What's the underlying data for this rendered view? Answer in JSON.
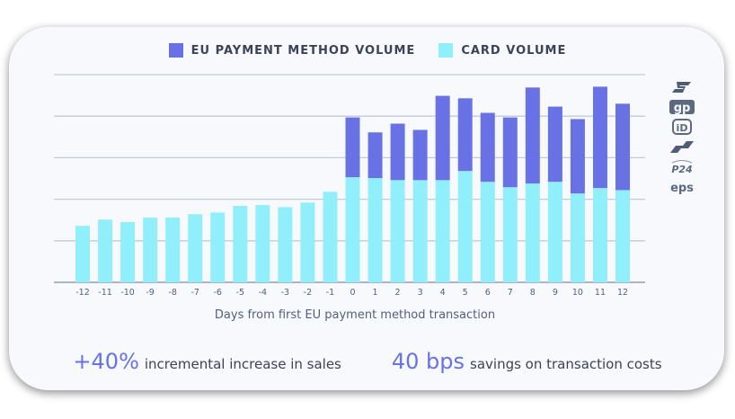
{
  "chart_data": {
    "type": "bar",
    "stacked": true,
    "xlabel": "Days from first EU payment method transaction",
    "ylabel": "",
    "ylim": [
      0,
      50
    ],
    "grid": true,
    "legend_placement": "top",
    "categories": [
      "-12",
      "-11",
      "-10",
      "-9",
      "-8",
      "-7",
      "-6",
      "-5",
      "-4",
      "-3",
      "-2",
      "-1",
      "0",
      "1",
      "2",
      "3",
      "4",
      "5",
      "6",
      "7",
      "8",
      "9",
      "10",
      "11",
      "12"
    ],
    "series": [
      {
        "name": "CARD VOLUME",
        "color": "#91eefb",
        "values": [
          13.6,
          15.1,
          14.5,
          15.6,
          15.6,
          16.4,
          16.8,
          18.4,
          18.6,
          18.1,
          19.2,
          21.8,
          25.3,
          25.1,
          24.6,
          24.6,
          24.6,
          26.8,
          24.2,
          22.9,
          23.8,
          24.2,
          21.4,
          22.7,
          22.2
        ]
      },
      {
        "name": "EU PAYMENT METHOD VOLUME",
        "color": "#6872e5",
        "values": [
          0,
          0,
          0,
          0,
          0,
          0,
          0,
          0,
          0,
          0,
          0,
          0,
          14.4,
          11.0,
          13.6,
          12.1,
          20.3,
          17.5,
          16.6,
          16.8,
          23.1,
          18.1,
          17.9,
          24.4,
          20.8
        ]
      }
    ]
  },
  "legend": [
    {
      "label": "EU PAYMENT METHOD VOLUME",
      "color": "#6872e5"
    },
    {
      "label": "CARD VOLUME",
      "color": "#91eefb"
    }
  ],
  "stats": [
    {
      "value": "+40%",
      "text": "incremental increase in sales"
    },
    {
      "value": "40 bps",
      "text": "savings on transaction costs"
    }
  ],
  "logos": [
    {
      "name": "sofort-logo",
      "text": "S"
    },
    {
      "name": "giropay-logo",
      "text": "gp"
    },
    {
      "name": "ideal-logo",
      "text": "iD"
    },
    {
      "name": "bancontact-logo",
      "text": ""
    },
    {
      "name": "p24-logo",
      "text": "P24"
    },
    {
      "name": "eps-logo",
      "text": "eps"
    }
  ]
}
